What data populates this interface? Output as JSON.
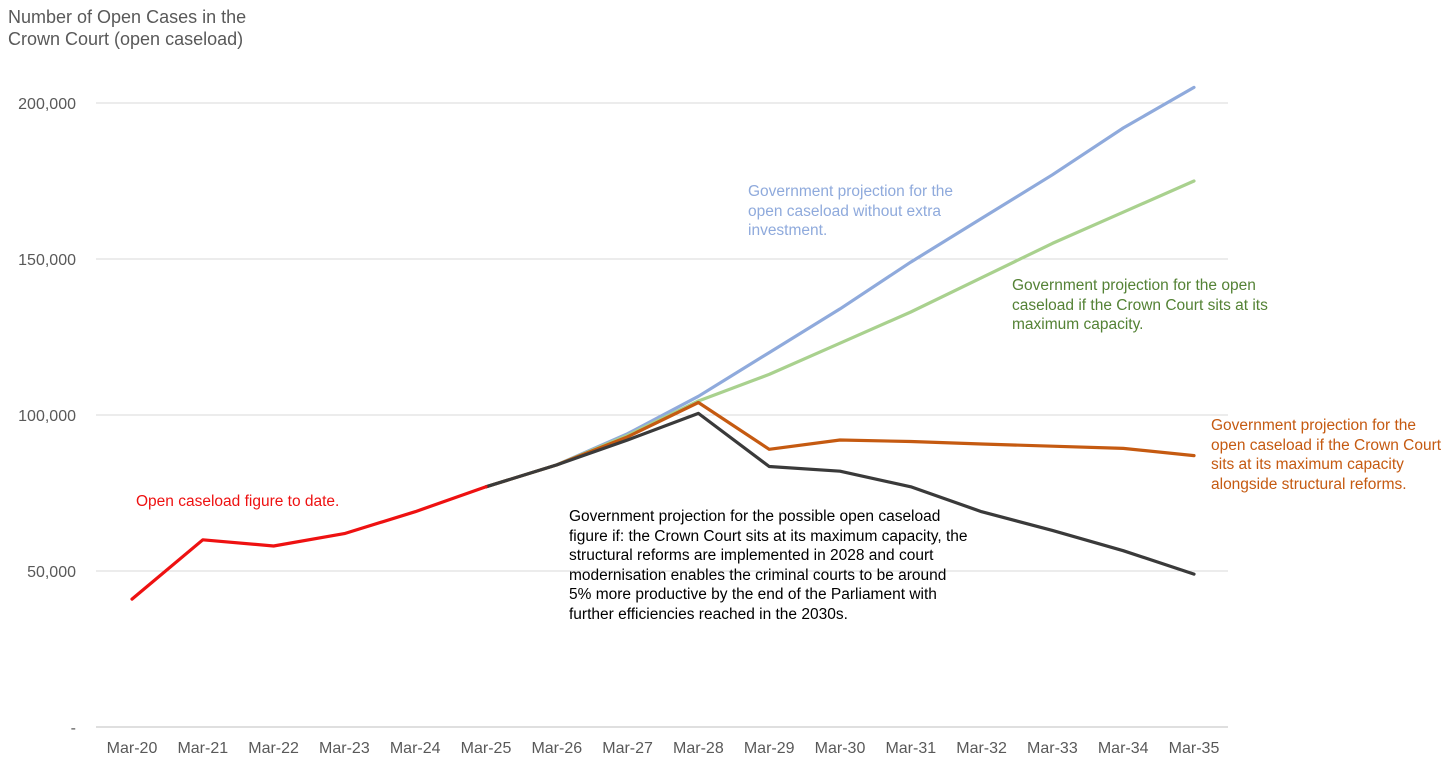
{
  "chart_data": {
    "type": "line",
    "title_lines": [
      "Number of Open Cases in the",
      "Crown Court (open caseload)"
    ],
    "xlabel": "",
    "ylabel": "",
    "ylim": [
      0,
      200000
    ],
    "y_ticks": [
      {
        "value": 0,
        "label": "-"
      },
      {
        "value": 50000,
        "label": "50,000"
      },
      {
        "value": 100000,
        "label": "100,000"
      },
      {
        "value": 150000,
        "label": "150,000"
      },
      {
        "value": 200000,
        "label": "200,000"
      }
    ],
    "categories": [
      "Mar-20",
      "Mar-21",
      "Mar-22",
      "Mar-23",
      "Mar-24",
      "Mar-25",
      "Mar-26",
      "Mar-27",
      "Mar-28",
      "Mar-29",
      "Mar-30",
      "Mar-31",
      "Mar-32",
      "Mar-33",
      "Mar-34",
      "Mar-35"
    ],
    "grid": true,
    "series": [
      {
        "key": "no-investment",
        "name": "Government projection for the open caseload without extra investment",
        "color": "#8faadc",
        "start": 5,
        "values": [
          null,
          null,
          null,
          null,
          null,
          77000,
          84000,
          94000,
          106000,
          120000,
          134000,
          149000,
          163000,
          177000,
          192000,
          205000
        ]
      },
      {
        "key": "max-capacity",
        "name": "Government projection for the open caseload if the Crown Court sits at its maximum capacity",
        "color": "#a9d18e",
        "start": 5,
        "values": [
          null,
          null,
          null,
          null,
          null,
          77000,
          84000,
          93500,
          104500,
          113000,
          123000,
          133000,
          144000,
          155000,
          165000,
          175000
        ]
      },
      {
        "key": "structural-reforms",
        "name": "Government projection for the open caseload if the Crown Court sits at its maximum capacity alongside structural reforms",
        "color": "#c55a11",
        "start": 5,
        "values": [
          null,
          null,
          null,
          null,
          null,
          77000,
          84000,
          93000,
          104000,
          89000,
          92000,
          91500,
          90700,
          90000,
          89300,
          87000
        ]
      },
      {
        "key": "modernisation",
        "name": "Government projection for the possible open caseload figure",
        "color": "#3a3a3a",
        "start": 5,
        "values": [
          null,
          null,
          null,
          null,
          null,
          77000,
          84000,
          92000,
          100500,
          83500,
          82000,
          77000,
          69000,
          63000,
          56500,
          49000
        ]
      },
      {
        "key": "actual",
        "name": "Open caseload figure to date",
        "color": "#ee1111",
        "start": 0,
        "values": [
          41000,
          60000,
          58000,
          62000,
          69000,
          77000,
          null,
          null,
          null,
          null,
          null,
          null,
          null,
          null,
          null,
          null
        ]
      }
    ],
    "annotations": {
      "actual": {
        "text": "Open caseload figure to date.",
        "color": "#ee1111"
      },
      "no_investment": {
        "text": "Government projection for the open caseload without extra investment.",
        "color": "#8faadc"
      },
      "max_capacity": {
        "text": "Government projection for the open caseload if the Crown Court sits at its maximum capacity.",
        "color": "#548235"
      },
      "structural_reforms": {
        "text": "Government projection for the open caseload if the Crown Court sits at its maximum capacity alongside structural reforms.",
        "color": "#c55a11"
      },
      "modernisation": {
        "text": "Government projection for the possible open caseload figure if: the Crown Court sits at its maximum capacity, the structural reforms are implemented in 2028 and court modernisation enables the criminal courts to be around 5% more productive by the end of the Parliament with further efficiencies reached in the 2030s.",
        "color": "#000000"
      }
    }
  }
}
